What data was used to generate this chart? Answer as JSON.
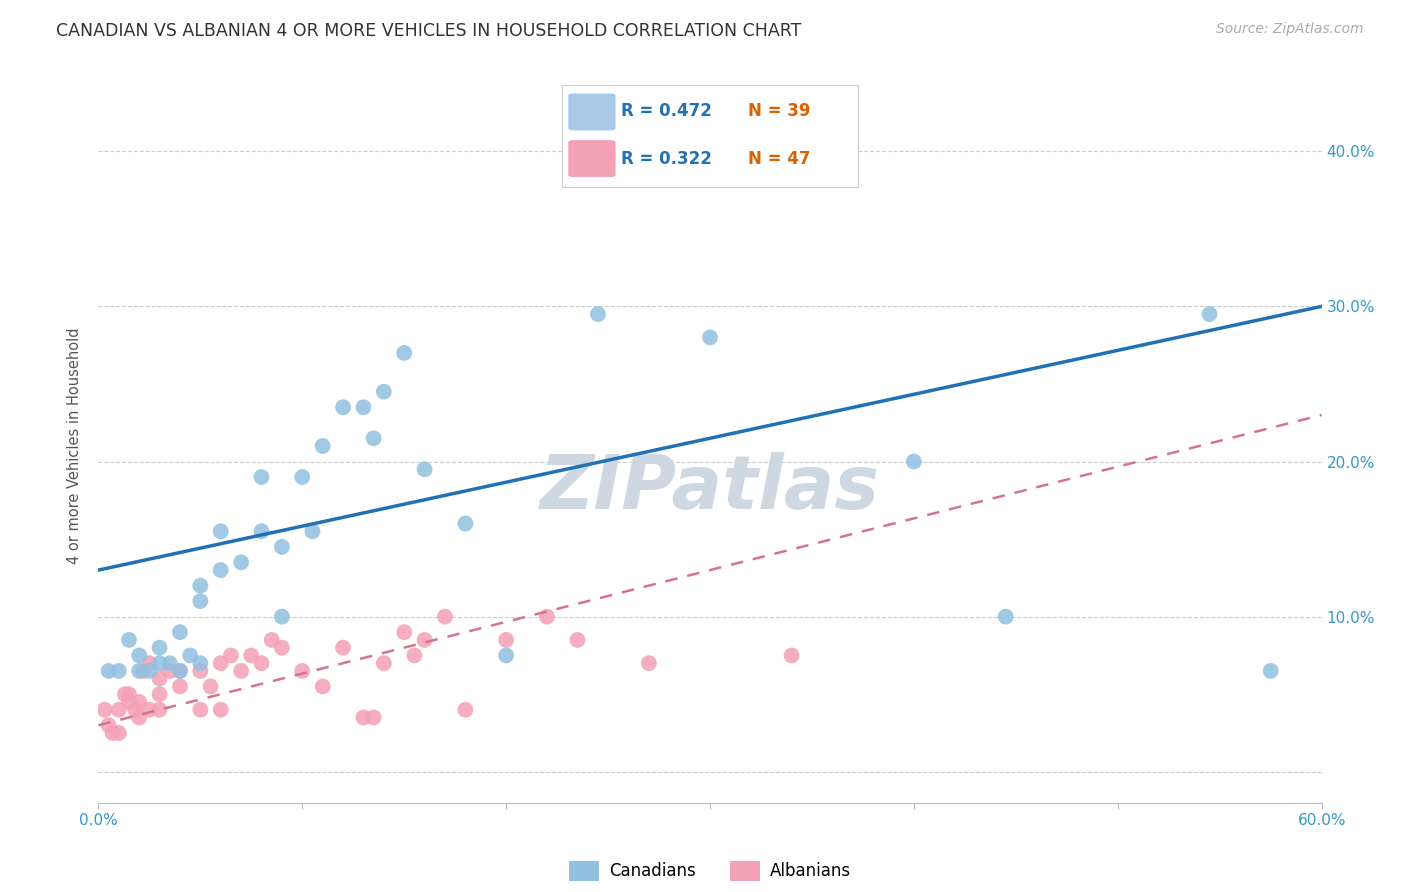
{
  "title": "CANADIAN VS ALBANIAN 4 OR MORE VEHICLES IN HOUSEHOLD CORRELATION CHART",
  "source": "Source: ZipAtlas.com",
  "ylabel": "4 or more Vehicles in Household",
  "xlim": [
    0.0,
    0.6
  ],
  "ylim": [
    -0.02,
    0.44
  ],
  "ytick_positions": [
    0.0,
    0.1,
    0.2,
    0.3,
    0.4
  ],
  "ytick_labels": [
    "",
    "10.0%",
    "20.0%",
    "30.0%",
    "40.0%"
  ],
  "xtick_positions": [
    0.0,
    0.1,
    0.2,
    0.3,
    0.4,
    0.5,
    0.6
  ],
  "xtick_labels": [
    "0.0%",
    "",
    "",
    "",
    "",
    "",
    "60.0%"
  ],
  "canadian_R": 0.472,
  "canadian_N": 39,
  "albanian_R": 0.322,
  "albanian_N": 47,
  "canadian_color": "#92c0e0",
  "albanian_color": "#f4a0b5",
  "trendline_canadian_color": "#2171b5",
  "trendline_albanian_color": "#d4748a",
  "background_color": "#ffffff",
  "grid_color": "#cccccc",
  "watermark_color": "#cdd8e3",
  "legend_box_color_canadian": "#a8c8e8",
  "legend_box_color_albanian": "#f4a0b5",
  "canadian_trend_x0": 0.0,
  "canadian_trend_y0": 0.13,
  "canadian_trend_x1": 0.6,
  "canadian_trend_y1": 0.3,
  "albanian_trend_x0": 0.0,
  "albanian_trend_y0": 0.03,
  "albanian_trend_x1": 0.6,
  "albanian_trend_y1": 0.23,
  "canadians_x": [
    0.005,
    0.01,
    0.015,
    0.02,
    0.02,
    0.025,
    0.03,
    0.03,
    0.035,
    0.04,
    0.04,
    0.045,
    0.05,
    0.05,
    0.05,
    0.06,
    0.06,
    0.07,
    0.08,
    0.08,
    0.09,
    0.09,
    0.1,
    0.105,
    0.11,
    0.12,
    0.13,
    0.135,
    0.14,
    0.15,
    0.16,
    0.18,
    0.2,
    0.245,
    0.3,
    0.4,
    0.445,
    0.545,
    0.575
  ],
  "canadians_y": [
    0.065,
    0.065,
    0.085,
    0.065,
    0.075,
    0.065,
    0.07,
    0.08,
    0.07,
    0.065,
    0.09,
    0.075,
    0.07,
    0.11,
    0.12,
    0.13,
    0.155,
    0.135,
    0.155,
    0.19,
    0.1,
    0.145,
    0.19,
    0.155,
    0.21,
    0.235,
    0.235,
    0.215,
    0.245,
    0.27,
    0.195,
    0.16,
    0.075,
    0.295,
    0.28,
    0.2,
    0.1,
    0.295,
    0.065
  ],
  "albanians_x": [
    0.003,
    0.005,
    0.007,
    0.01,
    0.01,
    0.013,
    0.015,
    0.015,
    0.018,
    0.02,
    0.02,
    0.022,
    0.025,
    0.025,
    0.03,
    0.03,
    0.03,
    0.035,
    0.04,
    0.04,
    0.05,
    0.05,
    0.055,
    0.06,
    0.06,
    0.065,
    0.07,
    0.075,
    0.08,
    0.085,
    0.09,
    0.1,
    0.11,
    0.12,
    0.13,
    0.135,
    0.14,
    0.15,
    0.155,
    0.16,
    0.17,
    0.18,
    0.2,
    0.22,
    0.235,
    0.27,
    0.34
  ],
  "albanians_y": [
    0.04,
    0.03,
    0.025,
    0.04,
    0.025,
    0.05,
    0.045,
    0.05,
    0.04,
    0.035,
    0.045,
    0.065,
    0.04,
    0.07,
    0.04,
    0.05,
    0.06,
    0.065,
    0.055,
    0.065,
    0.04,
    0.065,
    0.055,
    0.04,
    0.07,
    0.075,
    0.065,
    0.075,
    0.07,
    0.085,
    0.08,
    0.065,
    0.055,
    0.08,
    0.035,
    0.035,
    0.07,
    0.09,
    0.075,
    0.085,
    0.1,
    0.04,
    0.085,
    0.1,
    0.085,
    0.07,
    0.075
  ]
}
